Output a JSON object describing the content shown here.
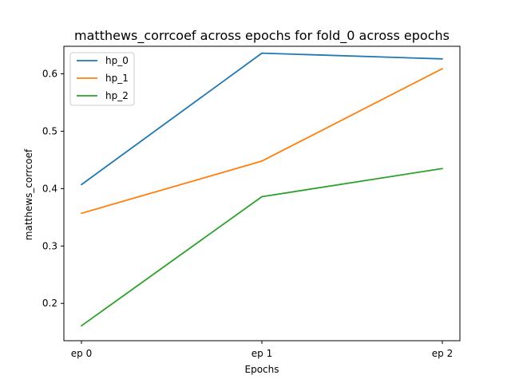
{
  "chart_data": {
    "type": "line",
    "title": "matthews_corrcoef across epochs for fold_0 across epochs",
    "xlabel": "Epochs",
    "ylabel": "matthews_corrcoef",
    "categories": [
      "ep 0",
      "ep 1",
      "ep 2"
    ],
    "yticks": [
      "0.2",
      "0.3",
      "0.4",
      "0.5",
      "0.6"
    ],
    "ylim": [
      0.135,
      0.648
    ],
    "grid": false,
    "legend_position": "top-left",
    "series": [
      {
        "name": "hp_0",
        "color": "#1f77b4",
        "values": [
          0.407,
          0.636,
          0.626
        ]
      },
      {
        "name": "hp_1",
        "color": "#ff7f0e",
        "values": [
          0.357,
          0.448,
          0.609
        ]
      },
      {
        "name": "hp_2",
        "color": "#2ca02c",
        "values": [
          0.161,
          0.386,
          0.435
        ]
      }
    ]
  }
}
